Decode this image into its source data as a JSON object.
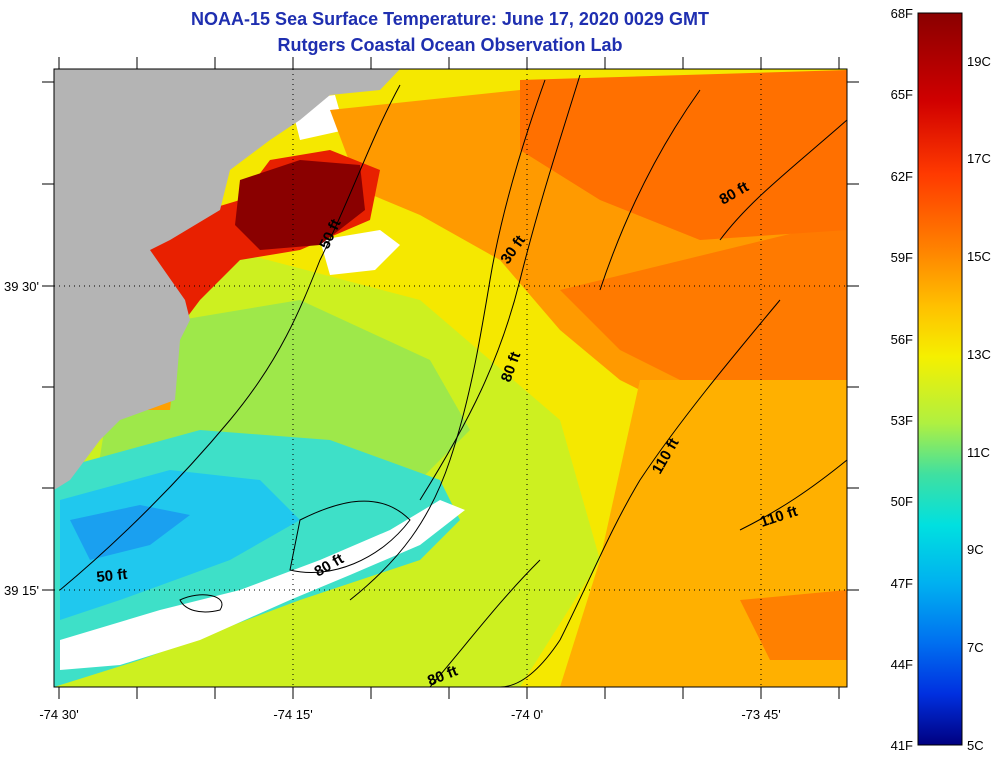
{
  "title_line1": "NOAA-15 Sea Surface Temperature:  June 17, 2020 0029 GMT",
  "title_line2": "Rutgers Coastal Ocean Observation Lab",
  "map": {
    "lon_ticks": [
      "-74 30'",
      "-74 15'",
      "-74 0'",
      "-73 45'"
    ],
    "lat_ticks": [
      "39 30'",
      "39 15'"
    ],
    "land_color": "#b4b4b4",
    "contour_labels": [
      "50 ft",
      "30 ft",
      "80 ft",
      "80 ft",
      "110 ft",
      "110 ft",
      "50 ft",
      "80 ft",
      "80 ft"
    ]
  },
  "colorbar": {
    "fahrenheit_labels": [
      "68F",
      "65F",
      "62F",
      "59F",
      "56F",
      "53F",
      "50F",
      "47F",
      "44F",
      "41F"
    ],
    "celsius_labels": [
      "19C",
      "17C",
      "15C",
      "13C",
      "11C",
      "9C",
      "7C",
      "5C"
    ],
    "colors": [
      "#8a0000",
      "#d00000",
      "#ff3a00",
      "#ff8000",
      "#ffc000",
      "#f5f000",
      "#b0f040",
      "#40e0a0",
      "#00e0e0",
      "#00b0f0",
      "#0070f0",
      "#0030e0",
      "#000080"
    ]
  }
}
